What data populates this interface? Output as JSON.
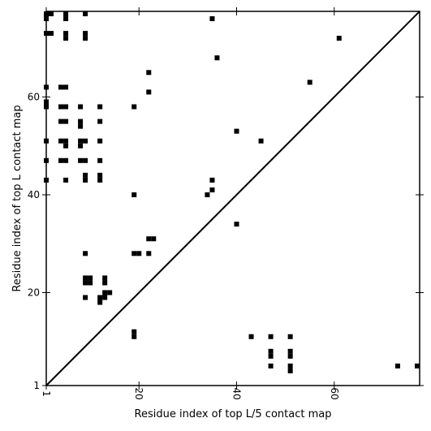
{
  "chart_data": {
    "type": "heatmap",
    "title": "",
    "xlabel": "Residue index of top L/5 contact map",
    "ylabel": "Residue index of top L contact map",
    "xlim": [
      1,
      77.5
    ],
    "ylim": [
      1,
      77.5
    ],
    "x_ticks": [
      1,
      20,
      40,
      60
    ],
    "x_tick_labels": [
      "1",
      "20",
      "40",
      "60"
    ],
    "y_ticks": [
      1,
      20,
      40,
      60
    ],
    "y_tick_labels": [
      "1",
      "20",
      "40",
      "60"
    ],
    "diagonal": true,
    "grid": false,
    "cell_color": "#000000",
    "cells": [
      [
        1,
        77
      ],
      [
        1,
        76
      ],
      [
        2,
        77
      ],
      [
        5,
        77
      ],
      [
        5,
        76
      ],
      [
        9,
        77
      ],
      [
        35,
        76
      ],
      [
        1,
        73
      ],
      [
        2,
        73
      ],
      [
        5,
        73
      ],
      [
        5,
        72
      ],
      [
        9,
        73
      ],
      [
        9,
        72
      ],
      [
        61,
        72
      ],
      [
        36,
        68
      ],
      [
        22,
        65
      ],
      [
        55,
        63
      ],
      [
        1,
        62
      ],
      [
        4,
        62
      ],
      [
        5,
        62
      ],
      [
        22,
        61
      ],
      [
        1,
        59
      ],
      [
        1,
        58
      ],
      [
        4,
        58
      ],
      [
        5,
        58
      ],
      [
        8,
        58
      ],
      [
        12,
        58
      ],
      [
        19,
        58
      ],
      [
        4,
        55
      ],
      [
        5,
        55
      ],
      [
        8,
        55
      ],
      [
        8,
        54
      ],
      [
        12,
        55
      ],
      [
        40,
        53
      ],
      [
        1,
        51
      ],
      [
        4,
        51
      ],
      [
        5,
        51
      ],
      [
        5,
        50
      ],
      [
        8,
        51
      ],
      [
        8,
        50
      ],
      [
        9,
        51
      ],
      [
        12,
        51
      ],
      [
        45,
        51
      ],
      [
        1,
        47
      ],
      [
        4,
        47
      ],
      [
        5,
        47
      ],
      [
        8,
        47
      ],
      [
        9,
        47
      ],
      [
        12,
        47
      ],
      [
        9,
        44
      ],
      [
        9,
        43
      ],
      [
        12,
        44
      ],
      [
        12,
        43
      ],
      [
        1,
        43
      ],
      [
        5,
        43
      ],
      [
        35,
        43
      ],
      [
        35,
        41
      ],
      [
        19,
        40
      ],
      [
        34,
        40
      ],
      [
        40,
        34
      ],
      [
        22,
        31
      ],
      [
        23,
        31
      ],
      [
        19,
        28
      ],
      [
        20,
        28
      ],
      [
        22,
        28
      ],
      [
        9,
        28
      ],
      [
        9,
        23
      ],
      [
        9,
        22
      ],
      [
        10,
        23
      ],
      [
        10,
        22
      ],
      [
        13,
        23
      ],
      [
        13,
        22
      ],
      [
        13,
        20
      ],
      [
        14,
        20
      ],
      [
        9,
        19
      ],
      [
        12,
        19
      ],
      [
        12,
        18
      ],
      [
        13,
        19
      ],
      [
        19,
        12
      ],
      [
        19,
        11
      ],
      [
        43,
        11
      ],
      [
        47,
        11
      ],
      [
        51,
        11
      ],
      [
        47,
        8
      ],
      [
        47,
        7
      ],
      [
        51,
        8
      ],
      [
        51,
        7
      ],
      [
        47,
        5
      ],
      [
        51,
        5
      ],
      [
        51,
        4
      ],
      [
        73,
        5
      ],
      [
        77,
        5
      ]
    ]
  }
}
